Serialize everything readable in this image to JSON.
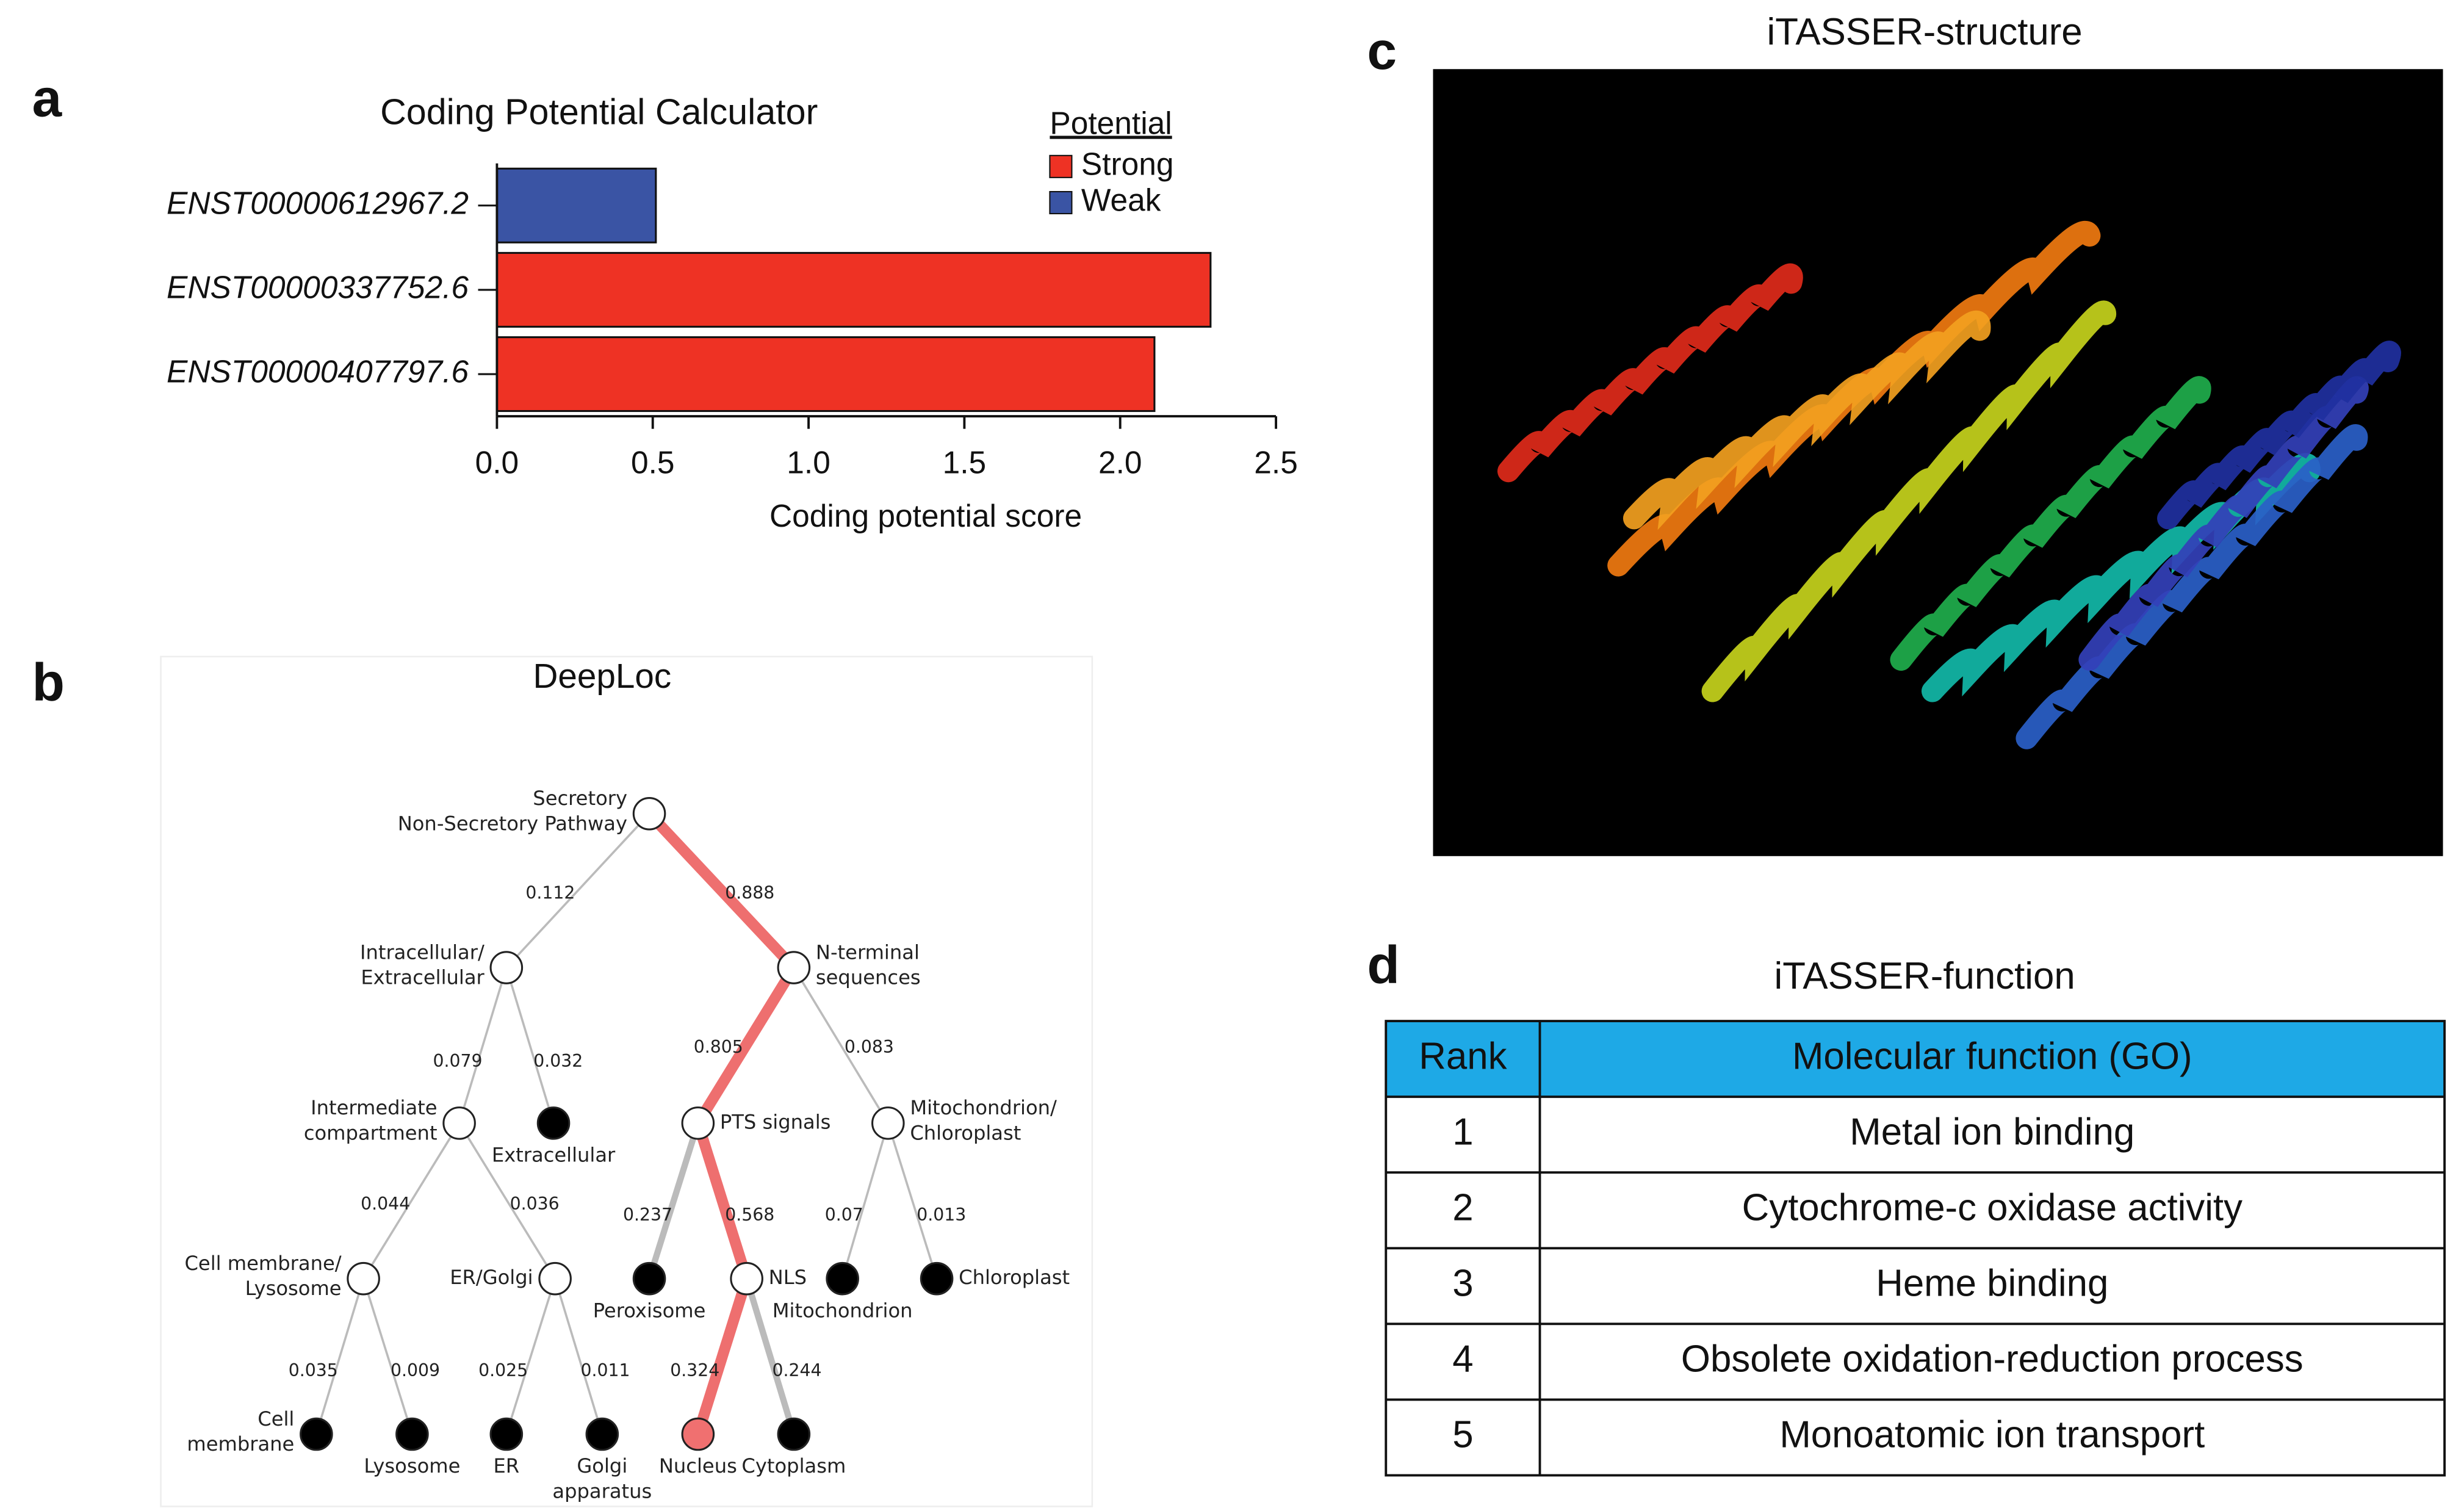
{
  "panel_labels": [
    "a",
    "b",
    "c",
    "d"
  ],
  "chart_data": {
    "type": "bar",
    "orientation": "horizontal",
    "title": "Coding Potential Calculator",
    "categories": [
      "ENST00000612967.2",
      "ENST00000337752.6",
      "ENST00000407797.6"
    ],
    "values": [
      0.51,
      2.29,
      2.11
    ],
    "colors": [
      "#3a54a4",
      "#ee3224",
      "#ee3224"
    ],
    "xlabel": "Coding potential score",
    "xlim": [
      0,
      2.5
    ],
    "xticks": [
      {
        "value": 0,
        "label": "0.0"
      },
      0.5,
      {
        "value": 1,
        "label": "1.0"
      },
      1.5,
      {
        "value": 2,
        "label": "2.0"
      },
      2.5
    ],
    "legend": {
      "title": "Potential",
      "position": "upper right",
      "entries": [
        {
          "name": "Strong",
          "color": "#ee3224"
        },
        {
          "name": "Weak",
          "color": "#3a54a4"
        }
      ]
    }
  },
  "tree": {
    "title": "DeepLoc",
    "nodes": [
      {
        "label": [
          "Secretory",
          "Non-Secretory Pathway"
        ],
        "parent": null,
        "prob": null,
        "leaf": false,
        "on_path": true
      },
      {
        "label": [
          "Intracellular/",
          "Extracellular"
        ],
        "parent": 0,
        "prob": 0.112,
        "leaf": false,
        "on_path": false
      },
      {
        "label": [
          "N-terminal",
          "sequences"
        ],
        "parent": 0,
        "prob": 0.888,
        "leaf": false,
        "on_path": true
      },
      {
        "label": [
          "Intermediate",
          "compartment"
        ],
        "parent": 1,
        "prob": 0.079,
        "leaf": false,
        "on_path": false
      },
      {
        "label": [
          "Extracellular"
        ],
        "parent": 1,
        "prob": 0.032,
        "leaf": true,
        "on_path": false
      },
      {
        "label": [
          "PTS signals"
        ],
        "parent": 2,
        "prob": 0.805,
        "leaf": false,
        "on_path": true
      },
      {
        "label": [
          "Mitochondrion/",
          "Chloroplast"
        ],
        "parent": 2,
        "prob": 0.083,
        "leaf": false,
        "on_path": false
      },
      {
        "label": [
          "Cell membrane/",
          "Lysosome"
        ],
        "parent": 3,
        "prob": 0.044,
        "leaf": false,
        "on_path": false
      },
      {
        "label": [
          "ER/Golgi"
        ],
        "parent": 3,
        "prob": 0.036,
        "leaf": false,
        "on_path": false
      },
      {
        "label": [
          "Peroxisome"
        ],
        "parent": 5,
        "prob": 0.237,
        "leaf": true,
        "on_path": false
      },
      {
        "label": [
          "NLS"
        ],
        "parent": 5,
        "prob": 0.568,
        "leaf": false,
        "on_path": true
      },
      {
        "label": [
          "Mitochondrion"
        ],
        "parent": 6,
        "prob": 0.07,
        "leaf": true,
        "on_path": false
      },
      {
        "label": [
          "Chloroplast"
        ],
        "parent": 6,
        "prob": 0.013,
        "leaf": true,
        "on_path": false
      },
      {
        "label": [
          "Cell",
          "membrane"
        ],
        "parent": 7,
        "prob": 0.035,
        "leaf": true,
        "on_path": false
      },
      {
        "label": [
          "Lysosome"
        ],
        "parent": 7,
        "prob": 0.009,
        "leaf": true,
        "on_path": false
      },
      {
        "label": [
          "ER"
        ],
        "parent": 8,
        "prob": 0.025,
        "leaf": true,
        "on_path": false
      },
      {
        "label": [
          "Golgi",
          "apparatus"
        ],
        "parent": 8,
        "prob": 0.011,
        "leaf": true,
        "on_path": false
      },
      {
        "label": [
          "Nucleus"
        ],
        "parent": 10,
        "prob": 0.324,
        "leaf": true,
        "on_path": true
      },
      {
        "label": [
          "Cytoplasm"
        ],
        "parent": 10,
        "prob": 0.244,
        "leaf": true,
        "on_path": false
      }
    ]
  },
  "structure": {
    "title": "iTASSER-structure"
  },
  "table": {
    "title": "iTASSER-function",
    "header": [
      "Rank",
      "Molecular function (GO)"
    ],
    "rows": [
      [
        1,
        "Metal ion binding"
      ],
      [
        2,
        "Cytochrome-c oxidase activity"
      ],
      [
        3,
        "Heme binding"
      ],
      [
        4,
        "Obsolete oxidation-reduction process"
      ],
      [
        5,
        "Monoatomic ion transport"
      ]
    ]
  }
}
